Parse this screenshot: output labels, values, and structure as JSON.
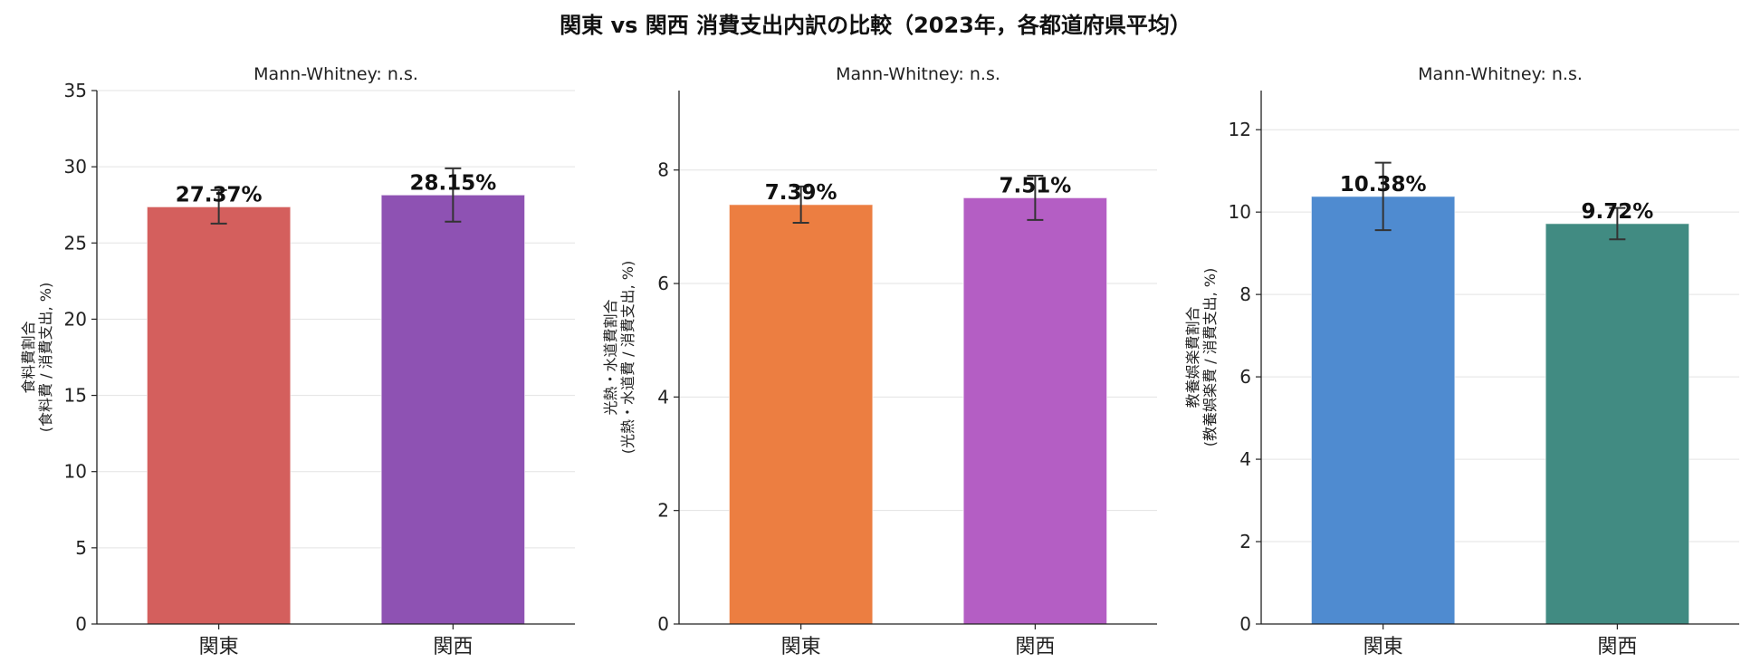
{
  "figure": {
    "title": "関東 vs 関西 消費支出内訳の比較（2023年，各都道府県平均）"
  },
  "chart_data": [
    {
      "type": "bar",
      "title": "Mann-Whitney: n.s.",
      "categories": [
        "関東",
        "関西"
      ],
      "values": [
        27.37,
        28.15
      ],
      "errors": [
        1.1,
        1.75
      ],
      "value_labels": [
        "27.37%",
        "28.15%"
      ],
      "colors": [
        "#d45f5d",
        "#8e52b3"
      ],
      "ylabel": "食料費割合\n(食料費 / 消費支出, %)",
      "ylim": [
        0,
        35
      ],
      "yticks": [
        0,
        5,
        10,
        15,
        20,
        25,
        30,
        35
      ],
      "grid": "y"
    },
    {
      "type": "bar",
      "title": "Mann-Whitney: n.s.",
      "categories": [
        "関東",
        "関西"
      ],
      "values": [
        7.39,
        7.51
      ],
      "errors": [
        0.32,
        0.39
      ],
      "value_labels": [
        "7.39%",
        "7.51%"
      ],
      "colors": [
        "#ec7e41",
        "#b45ec4"
      ],
      "ylabel": "光熱・水道費割合\n(光熱・水道費 / 消費支出, %)",
      "ylim": [
        0,
        9.4
      ],
      "yticks": [
        0,
        2,
        4,
        6,
        8
      ],
      "grid": "y"
    },
    {
      "type": "bar",
      "title": "Mann-Whitney: n.s.",
      "categories": [
        "関東",
        "関西"
      ],
      "values": [
        10.38,
        9.72
      ],
      "errors": [
        0.82,
        0.38
      ],
      "value_labels": [
        "10.38%",
        "9.72%"
      ],
      "colors": [
        "#4f8bd0",
        "#418b82"
      ],
      "ylabel": "教養娯楽費割合\n(教養娯楽費 / 消費支出, %)",
      "ylim": [
        0,
        12.95
      ],
      "yticks": [
        0,
        2,
        4,
        6,
        8,
        10,
        12
      ],
      "grid": "y"
    }
  ]
}
